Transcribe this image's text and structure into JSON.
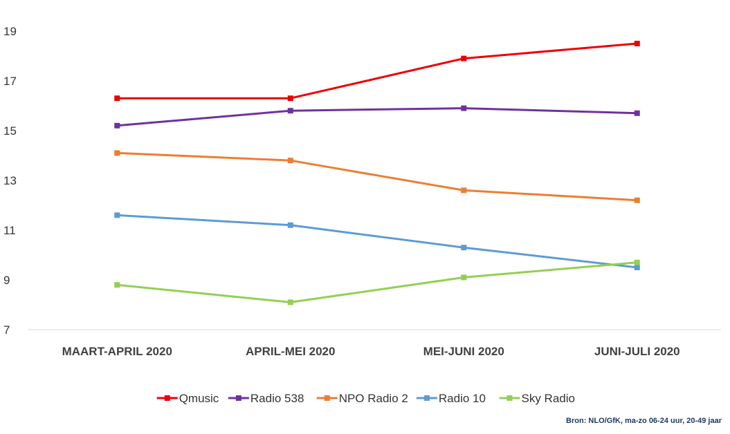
{
  "chart_data": {
    "type": "line",
    "categories": [
      "MAART-APRIL 2020",
      "APRIL-MEI 2020",
      "MEI-JUNI 2020",
      "JUNI-JULI 2020"
    ],
    "ylim": [
      7,
      19
    ],
    "yticks": [
      7,
      9,
      11,
      13,
      15,
      17,
      19
    ],
    "grid": false,
    "legend_position": "bottom",
    "series": [
      {
        "name": "Qmusic",
        "color": "#ee0000",
        "values": [
          16.3,
          16.3,
          17.9,
          18.5
        ]
      },
      {
        "name": "Radio 538",
        "color": "#7030a0",
        "values": [
          15.2,
          15.8,
          15.9,
          15.7
        ]
      },
      {
        "name": "NPO Radio 2",
        "color": "#ed7d31",
        "values": [
          14.1,
          13.8,
          12.6,
          12.2
        ]
      },
      {
        "name": "Radio 10",
        "color": "#5b9bd5",
        "values": [
          11.6,
          11.2,
          10.3,
          9.5
        ]
      },
      {
        "name": "Sky Radio",
        "color": "#92d050",
        "values": [
          8.8,
          8.1,
          9.1,
          9.7
        ]
      }
    ],
    "source": "Bron: NLO/GfK, ma-zo 06-24 uur, 20-49 jaar"
  }
}
